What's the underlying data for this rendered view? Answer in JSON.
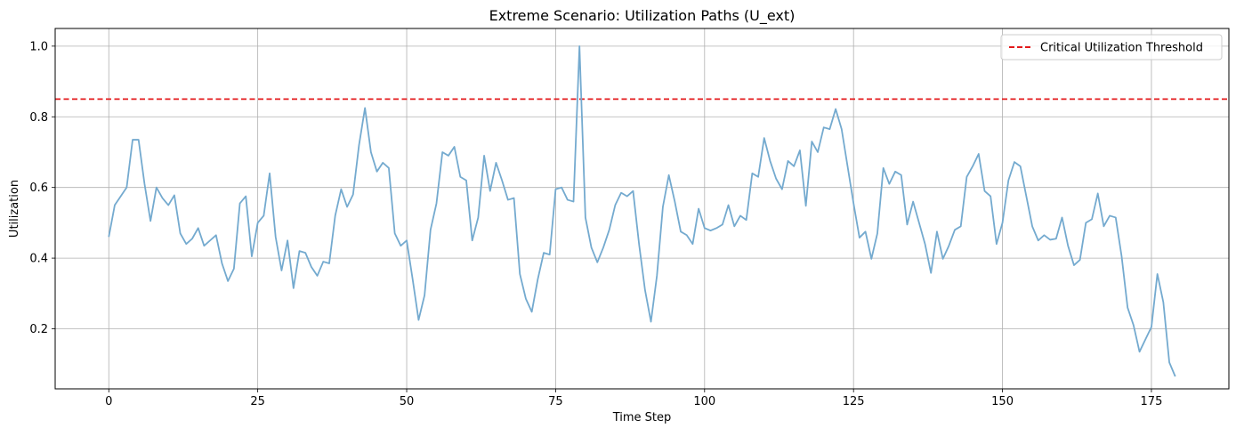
{
  "chart_data": {
    "type": "line",
    "title": "Extreme Scenario: Utilization Paths (U_ext)",
    "xlabel": "Time Step",
    "ylabel": "Utilization",
    "xlim": [
      -9,
      188
    ],
    "ylim": [
      0.03,
      1.05
    ],
    "xticks": [
      0,
      25,
      50,
      75,
      100,
      125,
      150,
      175
    ],
    "yticks": [
      0.2,
      0.4,
      0.6,
      0.8,
      1.0
    ],
    "xtick_labels": [
      "0",
      "25",
      "50",
      "75",
      "100",
      "125",
      "150",
      "175"
    ],
    "ytick_labels": [
      "0.2",
      "0.4",
      "0.6",
      "0.8",
      "1.0"
    ],
    "grid": true,
    "legend_position": "top-right",
    "series": [
      {
        "color": "#74aacf",
        "values": [
          0.46,
          0.55,
          0.575,
          0.6,
          0.735,
          0.735,
          0.61,
          0.505,
          0.6,
          0.57,
          0.55,
          0.578,
          0.47,
          0.44,
          0.455,
          0.485,
          0.435,
          0.45,
          0.465,
          0.385,
          0.335,
          0.37,
          0.555,
          0.575,
          0.405,
          0.5,
          0.52,
          0.64,
          0.46,
          0.365,
          0.45,
          0.315,
          0.42,
          0.415,
          0.375,
          0.35,
          0.39,
          0.385,
          0.52,
          0.595,
          0.545,
          0.58,
          0.72,
          0.825,
          0.7,
          0.645,
          0.67,
          0.655,
          0.47,
          0.435,
          0.45,
          0.34,
          0.225,
          0.295,
          0.48,
          0.555,
          0.7,
          0.69,
          0.715,
          0.63,
          0.62,
          0.45,
          0.515,
          0.69,
          0.59,
          0.67,
          0.62,
          0.565,
          0.57,
          0.355,
          0.285,
          0.248,
          0.34,
          0.415,
          0.41,
          0.595,
          0.6,
          0.565,
          0.56,
          1.0,
          0.515,
          0.43,
          0.388,
          0.43,
          0.48,
          0.55,
          0.585,
          0.575,
          0.59,
          0.44,
          0.31,
          0.22,
          0.35,
          0.545,
          0.635,
          0.56,
          0.475,
          0.465,
          0.44,
          0.54,
          0.485,
          0.478,
          0.485,
          0.495,
          0.55,
          0.49,
          0.52,
          0.508,
          0.64,
          0.63,
          0.74,
          0.675,
          0.625,
          0.595,
          0.675,
          0.66,
          0.705,
          0.548,
          0.73,
          0.7,
          0.77,
          0.765,
          0.822,
          0.765,
          0.66,
          0.555,
          0.458,
          0.475,
          0.398,
          0.47,
          0.655,
          0.61,
          0.645,
          0.635,
          0.495,
          0.56,
          0.5,
          0.44,
          0.358,
          0.475,
          0.398,
          0.435,
          0.48,
          0.49,
          0.63,
          0.66,
          0.695,
          0.59,
          0.575,
          0.44,
          0.5,
          0.62,
          0.672,
          0.66,
          0.575,
          0.49,
          0.45,
          0.465,
          0.452,
          0.455,
          0.515,
          0.435,
          0.38,
          0.395,
          0.5,
          0.51,
          0.583,
          0.49,
          0.52,
          0.515,
          0.405,
          0.26,
          0.21,
          0.135,
          0.17,
          0.205,
          0.355,
          0.275,
          0.105,
          0.065
        ]
      }
    ],
    "threshold": {
      "name": "Critical Utilization Threshold",
      "value": 0.85,
      "color": "#e31a1c",
      "style": "dashed"
    }
  }
}
